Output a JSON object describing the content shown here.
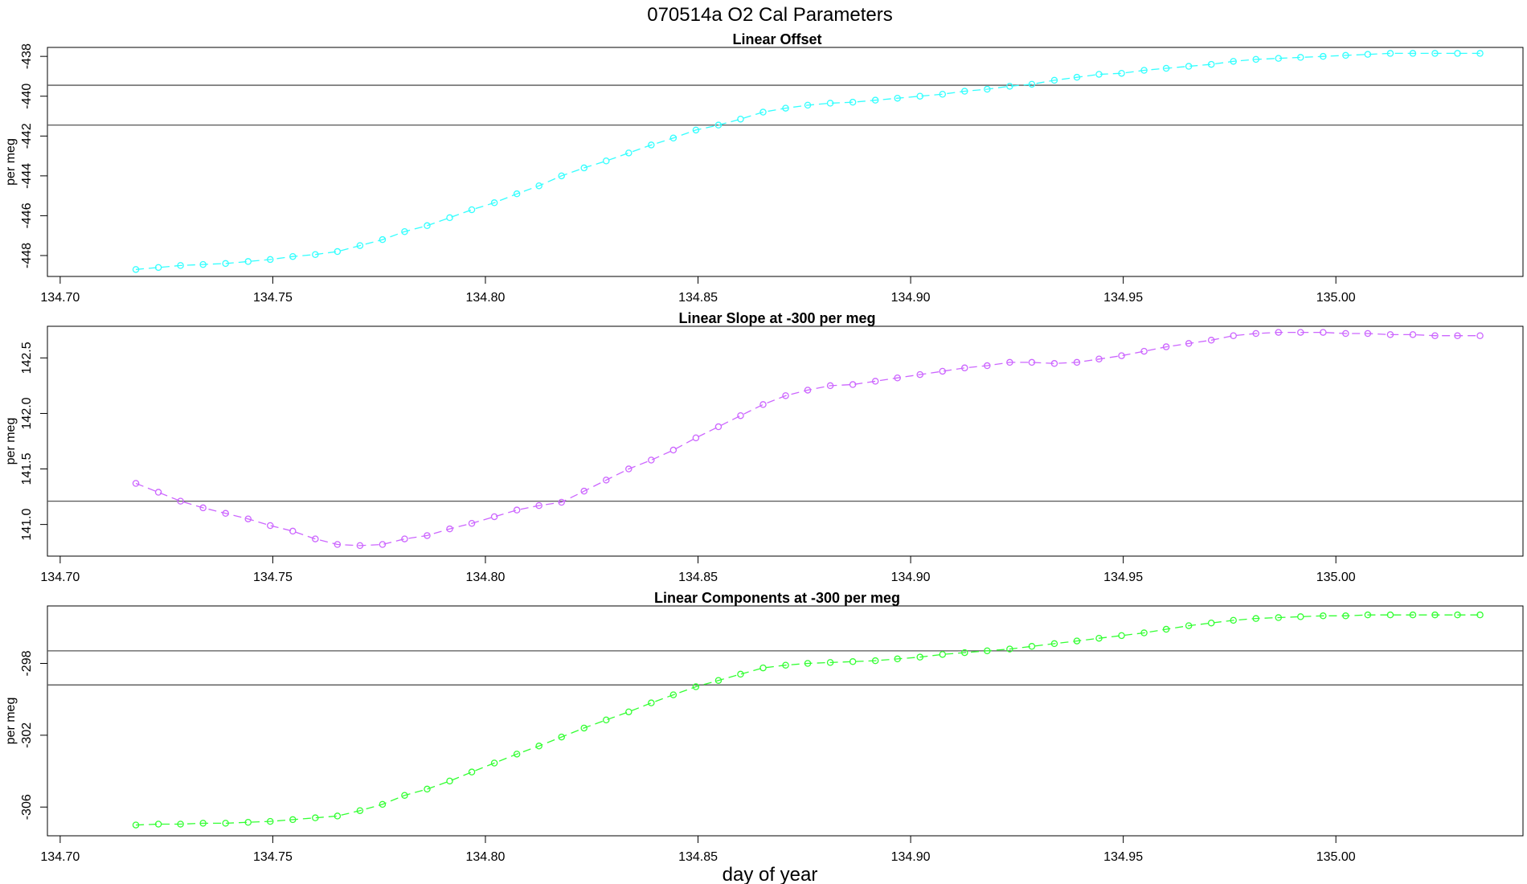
{
  "figure": {
    "title": "070514a   O2 Cal Parameters",
    "xlabel": "day of year"
  },
  "chart_data": [
    {
      "type": "line",
      "title": "Linear Offset",
      "ylabel": "per meg",
      "color": "#33ffff",
      "xlim": [
        134.697,
        135.044
      ],
      "ylim": [
        -449.05,
        -437.55
      ],
      "xticks": [
        "134.70",
        "134.75",
        "134.80",
        "134.85",
        "134.90",
        "134.95",
        "135.00"
      ],
      "yticks": [
        "-438",
        "-440",
        "-442",
        "-444",
        "-446",
        "-448"
      ],
      "hlines": [
        -439.45,
        -441.45
      ],
      "x": [
        134.7178,
        134.7231,
        134.7283,
        134.7336,
        134.7389,
        134.7442,
        134.7494,
        134.7547,
        134.76,
        134.7652,
        134.7705,
        134.7758,
        134.781,
        134.7863,
        134.7916,
        134.7968,
        134.8021,
        134.8074,
        134.8126,
        134.8179,
        134.8232,
        134.8284,
        134.8337,
        134.839,
        134.8442,
        134.8495,
        134.8548,
        134.86,
        134.8653,
        134.8706,
        134.8758,
        134.8811,
        134.8864,
        134.8917,
        134.8969,
        134.9022,
        134.9075,
        134.9127,
        134.918,
        134.9233,
        134.9285,
        134.9338,
        134.9391,
        134.9443,
        134.9496,
        134.9549,
        134.9601,
        134.9654,
        134.9707,
        134.9759,
        134.9812,
        134.9865,
        134.9917,
        134.997,
        135.0023,
        135.0075,
        135.0128,
        135.0181,
        135.0233,
        135.0286,
        135.0339
      ],
      "y": [
        -448.7,
        -448.6,
        -448.5,
        -448.45,
        -448.4,
        -448.3,
        -448.2,
        -448.05,
        -447.95,
        -447.8,
        -447.5,
        -447.2,
        -446.8,
        -446.5,
        -446.1,
        -445.7,
        -445.35,
        -444.9,
        -444.5,
        -444.0,
        -443.6,
        -443.25,
        -442.85,
        -442.45,
        -442.1,
        -441.7,
        -441.45,
        -441.15,
        -440.8,
        -440.6,
        -440.45,
        -440.35,
        -440.3,
        -440.2,
        -440.1,
        -440.0,
        -439.9,
        -439.75,
        -439.65,
        -439.5,
        -439.4,
        -439.2,
        -439.05,
        -438.9,
        -438.85,
        -438.7,
        -438.6,
        -438.5,
        -438.4,
        -438.25,
        -438.15,
        -438.1,
        -438.05,
        -438.0,
        -437.95,
        -437.9,
        -437.85,
        -437.85,
        -437.85,
        -437.85,
        -437.85
      ]
    },
    {
      "type": "line",
      "title": "Linear Slope at -300 per meg",
      "ylabel": "per meg",
      "color": "#cc66ff",
      "xlim": [
        134.697,
        135.044
      ],
      "ylim": [
        140.715,
        142.785
      ],
      "xticks": [
        "134.70",
        "134.75",
        "134.80",
        "134.85",
        "134.90",
        "134.95",
        "135.00"
      ],
      "yticks": [
        "141.0",
        "141.5",
        "142.0",
        "142.5"
      ],
      "hlines": [
        141.21
      ],
      "x": [
        134.7178,
        134.7231,
        134.7283,
        134.7336,
        134.7389,
        134.7442,
        134.7494,
        134.7547,
        134.76,
        134.7652,
        134.7705,
        134.7758,
        134.781,
        134.7863,
        134.7916,
        134.7968,
        134.8021,
        134.8074,
        134.8126,
        134.8179,
        134.8232,
        134.8284,
        134.8337,
        134.839,
        134.8442,
        134.8495,
        134.8548,
        134.86,
        134.8653,
        134.8706,
        134.8758,
        134.8811,
        134.8864,
        134.8917,
        134.8969,
        134.9022,
        134.9075,
        134.9127,
        134.918,
        134.9233,
        134.9285,
        134.9338,
        134.9391,
        134.9443,
        134.9496,
        134.9549,
        134.9601,
        134.9654,
        134.9707,
        134.9759,
        134.9812,
        134.9865,
        134.9917,
        134.997,
        135.0023,
        135.0075,
        135.0128,
        135.0181,
        135.0233,
        135.0286,
        135.0339
      ],
      "y": [
        141.37,
        141.29,
        141.21,
        141.15,
        141.1,
        141.05,
        140.99,
        140.94,
        140.87,
        140.82,
        140.81,
        140.82,
        140.87,
        140.9,
        140.96,
        141.01,
        141.07,
        141.13,
        141.17,
        141.2,
        141.3,
        141.4,
        141.5,
        141.58,
        141.67,
        141.78,
        141.88,
        141.98,
        142.08,
        142.16,
        142.21,
        142.25,
        142.26,
        142.29,
        142.32,
        142.35,
        142.38,
        142.41,
        142.43,
        142.46,
        142.46,
        142.45,
        142.46,
        142.49,
        142.52,
        142.56,
        142.6,
        142.63,
        142.66,
        142.7,
        142.72,
        142.73,
        142.73,
        142.73,
        142.72,
        142.72,
        142.71,
        142.71,
        142.7,
        142.7,
        142.7
      ]
    },
    {
      "type": "line",
      "title": "Linear Components at -300 per meg",
      "ylabel": "per meg",
      "color": "#33ff33",
      "xlim": [
        134.697,
        135.044
      ],
      "ylim": [
        -307.6,
        -294.8
      ],
      "xticks": [
        "134.70",
        "134.75",
        "134.80",
        "134.85",
        "134.90",
        "134.95",
        "135.00"
      ],
      "yticks": [
        "-298",
        "-302",
        "-306"
      ],
      "hlines": [
        -297.3,
        -299.2
      ],
      "x": [
        134.7178,
        134.7231,
        134.7283,
        134.7336,
        134.7389,
        134.7442,
        134.7494,
        134.7547,
        134.76,
        134.7652,
        134.7705,
        134.7758,
        134.781,
        134.7863,
        134.7916,
        134.7968,
        134.8021,
        134.8074,
        134.8126,
        134.8179,
        134.8232,
        134.8284,
        134.8337,
        134.839,
        134.8442,
        134.8495,
        134.8548,
        134.86,
        134.8653,
        134.8706,
        134.8758,
        134.8811,
        134.8864,
        134.8917,
        134.8969,
        134.9022,
        134.9075,
        134.9127,
        134.918,
        134.9233,
        134.9285,
        134.9338,
        134.9391,
        134.9443,
        134.9496,
        134.9549,
        134.9601,
        134.9654,
        134.9707,
        134.9759,
        134.9812,
        134.9865,
        134.9917,
        134.997,
        135.0023,
        135.0075,
        135.0128,
        135.0181,
        135.0233,
        135.0286,
        135.0339
      ],
      "y": [
        -307.0,
        -306.95,
        -306.95,
        -306.9,
        -306.9,
        -306.85,
        -306.8,
        -306.7,
        -306.6,
        -306.5,
        -306.2,
        -305.85,
        -305.35,
        -305.0,
        -304.55,
        -304.05,
        -303.55,
        -303.05,
        -302.6,
        -302.1,
        -301.6,
        -301.15,
        -300.7,
        -300.2,
        -299.75,
        -299.3,
        -298.95,
        -298.6,
        -298.25,
        -298.1,
        -298.0,
        -297.95,
        -297.9,
        -297.85,
        -297.75,
        -297.65,
        -297.5,
        -297.4,
        -297.3,
        -297.2,
        -297.05,
        -296.9,
        -296.75,
        -296.6,
        -296.45,
        -296.3,
        -296.1,
        -295.9,
        -295.75,
        -295.6,
        -295.5,
        -295.45,
        -295.4,
        -295.35,
        -295.35,
        -295.3,
        -295.3,
        -295.3,
        -295.3,
        -295.3,
        -295.3
      ]
    }
  ]
}
